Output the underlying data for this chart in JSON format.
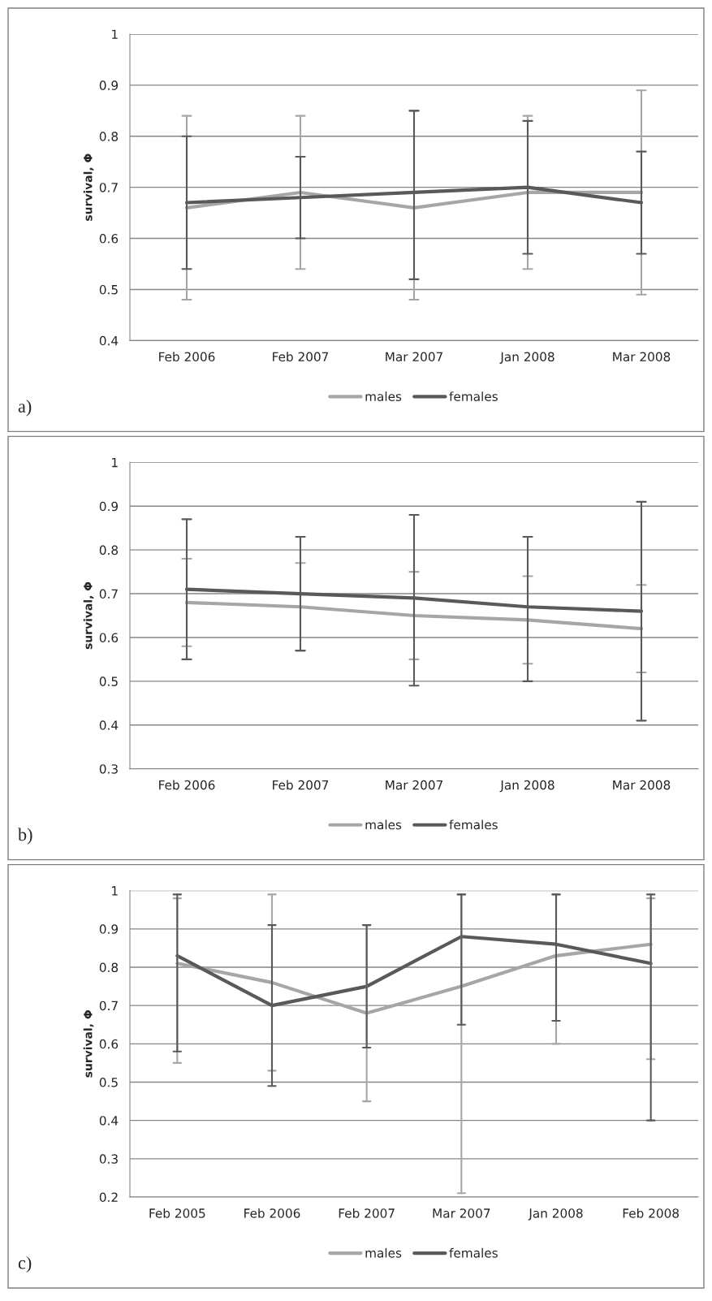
{
  "chart_data": [
    {
      "type": "line",
      "ylabel": "survival, Φ",
      "categories": [
        "Feb 2006",
        "Feb 2007",
        "Mar 2007",
        "Jan 2008",
        "Mar 2008"
      ],
      "ylim": [
        0.4,
        1
      ],
      "yticks": [
        0.4,
        0.5,
        0.6,
        0.7,
        0.8,
        0.9,
        1
      ],
      "grid": "y",
      "legend": "bottom",
      "marker": "none",
      "line_style": "solid",
      "annotations": [
        "a)"
      ],
      "series": [
        {
          "name": "males",
          "color": "#a6a6a6",
          "values": [
            0.66,
            0.69,
            0.66,
            0.69,
            0.69
          ],
          "errors": [
            [
              0.48,
              0.84
            ],
            [
              0.54,
              0.84
            ],
            [
              0.48,
              0.85
            ],
            [
              0.54,
              0.84
            ],
            [
              0.49,
              0.89
            ]
          ]
        },
        {
          "name": "females",
          "color": "#595959",
          "values": [
            0.67,
            0.68,
            0.69,
            0.7,
            0.67
          ],
          "errors": [
            [
              0.54,
              0.8
            ],
            [
              0.6,
              0.76
            ],
            [
              0.52,
              0.85
            ],
            [
              0.57,
              0.83
            ],
            [
              0.57,
              0.77
            ]
          ]
        }
      ]
    },
    {
      "type": "line",
      "ylabel": "survival, Φ",
      "categories": [
        "Feb 2006",
        "Feb 2007",
        "Mar 2007",
        "Jan 2008",
        "Mar 2008"
      ],
      "ylim": [
        0.3,
        1
      ],
      "yticks": [
        0.3,
        0.4,
        0.5,
        0.6,
        0.7,
        0.8,
        0.9,
        1
      ],
      "grid": "y",
      "legend": "bottom",
      "marker": "none",
      "line_style": "solid",
      "annotations": [
        "b)"
      ],
      "series": [
        {
          "name": "males",
          "color": "#a6a6a6",
          "values": [
            0.68,
            0.67,
            0.65,
            0.64,
            0.62
          ],
          "errors": [
            [
              0.58,
              0.78
            ],
            [
              0.57,
              0.77
            ],
            [
              0.55,
              0.75
            ],
            [
              0.54,
              0.74
            ],
            [
              0.52,
              0.72
            ]
          ]
        },
        {
          "name": "females",
          "color": "#595959",
          "values": [
            0.71,
            0.7,
            0.69,
            0.67,
            0.66
          ],
          "errors": [
            [
              0.55,
              0.87
            ],
            [
              0.57,
              0.83
            ],
            [
              0.49,
              0.88
            ],
            [
              0.5,
              0.83
            ],
            [
              0.41,
              0.91
            ]
          ]
        }
      ]
    },
    {
      "type": "line",
      "ylabel": "survival, Φ",
      "categories": [
        "Feb 2005",
        "Feb 2006",
        "Feb 2007",
        "Mar 2007",
        "Jan 2008",
        "Feb 2008"
      ],
      "ylim": [
        0.2,
        1
      ],
      "yticks": [
        0.2,
        0.3,
        0.4,
        0.5,
        0.6,
        0.7,
        0.8,
        0.9,
        1
      ],
      "grid": "y",
      "legend": "bottom",
      "marker": "none",
      "line_style": "solid",
      "annotations": [
        "c)"
      ],
      "series": [
        {
          "name": "males",
          "color": "#a6a6a6",
          "values": [
            0.81,
            0.76,
            0.68,
            0.75,
            0.83,
            0.86
          ],
          "errors": [
            [
              0.55,
              0.98
            ],
            [
              0.53,
              0.99
            ],
            [
              0.45,
              0.91
            ],
            [
              0.21,
              0.99
            ],
            [
              0.6,
              0.99
            ],
            [
              0.56,
              0.98
            ]
          ]
        },
        {
          "name": "females",
          "color": "#595959",
          "values": [
            0.83,
            0.7,
            0.75,
            0.88,
            0.86,
            0.81
          ],
          "errors": [
            [
              0.58,
              0.99
            ],
            [
              0.49,
              0.91
            ],
            [
              0.59,
              0.91
            ],
            [
              0.65,
              0.99
            ],
            [
              0.66,
              0.99
            ],
            [
              0.4,
              0.99
            ]
          ]
        }
      ]
    }
  ]
}
